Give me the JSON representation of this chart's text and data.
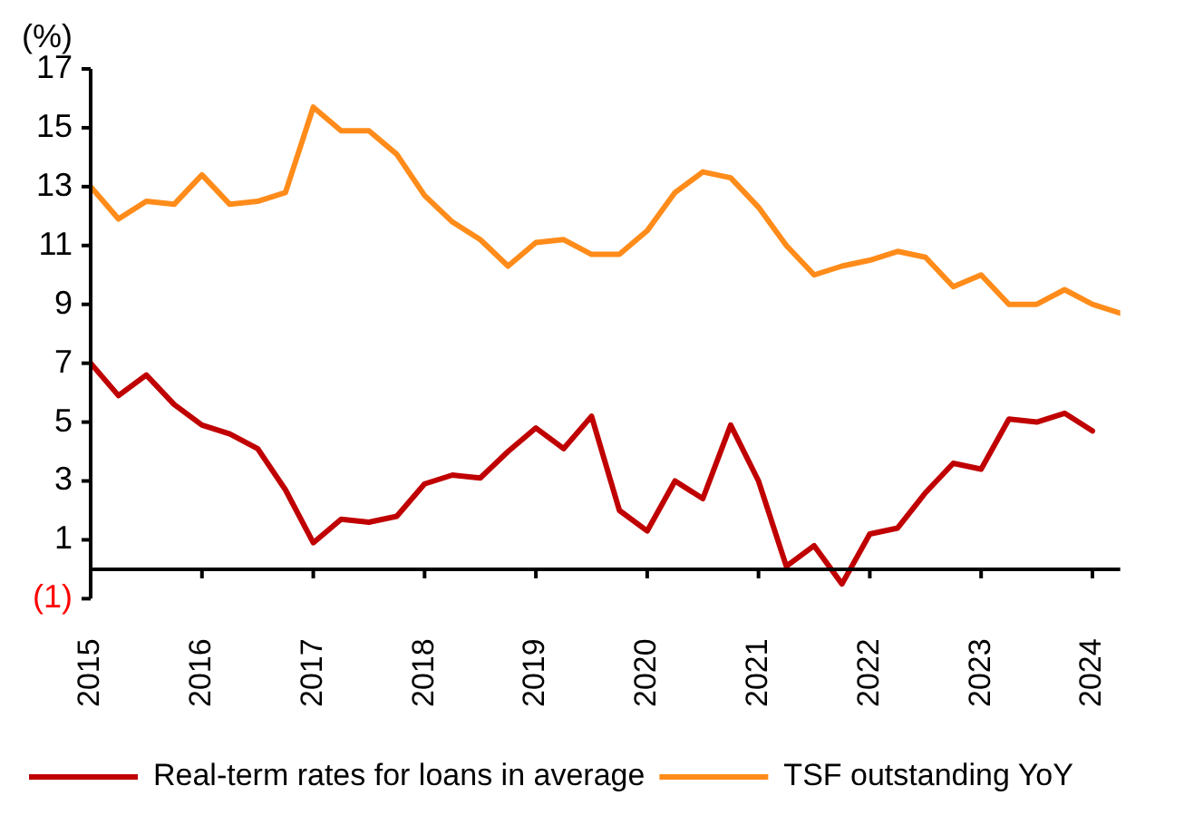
{
  "chart_data": {
    "type": "line",
    "ylabel": "(%)",
    "x": [
      2015,
      2015.25,
      2015.5,
      2015.75,
      2016,
      2016.25,
      2016.5,
      2016.75,
      2017,
      2017.25,
      2017.5,
      2017.75,
      2018,
      2018.25,
      2018.5,
      2018.75,
      2019,
      2019.25,
      2019.5,
      2019.75,
      2020,
      2020.25,
      2020.5,
      2020.75,
      2021,
      2021.25,
      2021.5,
      2021.75,
      2022,
      2022.25,
      2022.5,
      2022.75,
      2023,
      2023.25,
      2023.5,
      2023.75,
      2024,
      2024.25
    ],
    "series": [
      {
        "name": "Real-term rates for loans in average",
        "color": "#c00000",
        "values": [
          7.0,
          5.9,
          6.6,
          5.6,
          4.9,
          4.6,
          4.1,
          2.7,
          0.9,
          1.7,
          1.6,
          1.8,
          2.9,
          3.2,
          3.1,
          4.0,
          4.8,
          4.1,
          5.2,
          2.0,
          1.3,
          3.0,
          2.4,
          4.9,
          3.0,
          0.1,
          0.8,
          -0.5,
          1.2,
          1.4,
          2.6,
          3.6,
          3.4,
          5.1,
          5.0,
          5.3,
          4.7,
          null
        ]
      },
      {
        "name": "TSF outstanding YoY",
        "color": "#ff8c1a",
        "values": [
          13.0,
          11.9,
          12.5,
          12.4,
          13.4,
          12.4,
          12.5,
          12.8,
          15.7,
          14.9,
          14.9,
          14.1,
          12.7,
          11.8,
          11.2,
          10.3,
          11.1,
          11.2,
          10.7,
          10.7,
          11.5,
          12.8,
          13.5,
          13.3,
          12.3,
          11.0,
          10.0,
          10.3,
          10.5,
          10.8,
          10.6,
          9.6,
          10.0,
          9.0,
          9.0,
          9.5,
          9.0,
          8.7
        ]
      }
    ],
    "xlim": [
      2015,
      2024.25
    ],
    "xticks": [
      2015,
      2016,
      2017,
      2018,
      2019,
      2020,
      2021,
      2022,
      2023,
      2024
    ],
    "ylim": [
      -1,
      17
    ],
    "yticks": [
      {
        "value": -1,
        "label": "(1)"
      },
      1,
      3,
      5,
      7,
      9,
      11,
      13,
      15,
      17
    ],
    "grid": false,
    "legend": "bottom",
    "marker": "none",
    "line_style": "solid"
  }
}
